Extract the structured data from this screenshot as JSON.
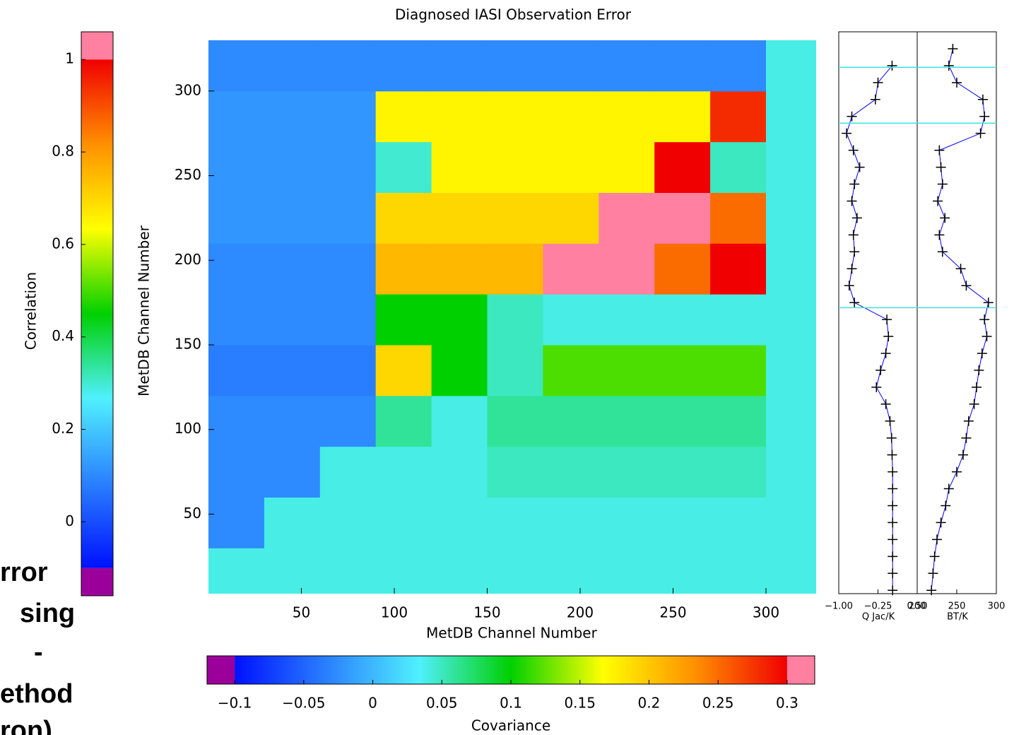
{
  "cropped_text": [
    "rror",
    "sing",
    "-",
    "ethod",
    "ron)"
  ],
  "chart_data": [
    {
      "type": "heatmap",
      "title": "Diagnosed IASI Observation Error",
      "xlabel": "MetDB Channel Number",
      "ylabel": "MetDB Channel Number",
      "xlim": [
        0,
        327
      ],
      "ylim": [
        3,
        335
      ],
      "xticks": [
        50,
        100,
        150,
        200,
        250,
        300
      ],
      "yticks": [
        50,
        100,
        150,
        200,
        250,
        300
      ],
      "x_edges": [
        0,
        30,
        60,
        90,
        120,
        150,
        180,
        210,
        240,
        270,
        300,
        330
      ],
      "y_edges": [
        0,
        30,
        60,
        90,
        120,
        150,
        180,
        210,
        240,
        270,
        300,
        330
      ],
      "z": [
        [
          0.04,
          0.04,
          0.04,
          0.04,
          0.04,
          0.04,
          0.04,
          0.04,
          0.04,
          0.04,
          0.04
        ],
        [
          0.1,
          0.04,
          0.04,
          0.04,
          0.04,
          0.04,
          0.04,
          0.04,
          0.04,
          0.04,
          0.04
        ],
        [
          0.1,
          0.1,
          0.04,
          0.04,
          0.04,
          0.05,
          0.05,
          0.05,
          0.05,
          0.05,
          0.04
        ],
        [
          0.1,
          0.1,
          0.1,
          0.06,
          0.04,
          0.06,
          0.06,
          0.06,
          0.06,
          0.06,
          0.04
        ],
        [
          0.08,
          0.08,
          0.08,
          0.7,
          0.1,
          0.05,
          0.12,
          0.12,
          0.12,
          0.12,
          0.04
        ],
        [
          0.1,
          0.1,
          0.1,
          0.45,
          0.45,
          0.05,
          0.04,
          0.04,
          0.04,
          0.04,
          0.04
        ],
        [
          0.1,
          0.1,
          0.1,
          0.75,
          0.75,
          0.75,
          0.35,
          0.35,
          0.25,
          0.3,
          0.04
        ],
        [
          0.12,
          0.12,
          0.12,
          0.7,
          0.7,
          0.7,
          0.7,
          0.35,
          0.32,
          0.25,
          0.04
        ],
        [
          0.12,
          0.12,
          0.12,
          0.3,
          0.65,
          0.65,
          0.65,
          0.65,
          0.3,
          0.05,
          0.04
        ],
        [
          0.12,
          0.12,
          0.12,
          0.65,
          0.65,
          0.65,
          0.65,
          0.65,
          0.65,
          0.28,
          0.04
        ],
        [
          0.1,
          0.1,
          0.1,
          0.1,
          0.1,
          0.1,
          0.1,
          0.1,
          0.1,
          0.1,
          0.04
        ]
      ],
      "colorbars": [
        {
          "label": "Correlation",
          "lim": [
            -0.16,
            1.06
          ],
          "range": [
            -0.1,
            1
          ],
          "ticks": [
            0,
            0.2,
            0.4,
            0.6,
            0.8,
            1
          ],
          "colors": [
            "#0010ff",
            "#2a80ff",
            "#50f0ff",
            "#00d000",
            "#ffff00",
            "#ff9000",
            "#f00000"
          ],
          "under_color": "#9b009b",
          "over_color": "#ff80a0"
        },
        {
          "label": "Covariance",
          "lim": [
            -0.12,
            0.32
          ],
          "range": [
            -0.1,
            0.3
          ],
          "ticks": [
            {
              "value": -0.1,
              "label": "−0.1"
            },
            {
              "value": -0.05,
              "label": "−0.05"
            },
            0,
            0.05,
            0.1,
            0.15,
            0.2,
            0.25,
            0.3
          ],
          "colors": [
            "#0010ff",
            "#2a80ff",
            "#50f0ff",
            "#00d000",
            "#ffff00",
            "#ff9000",
            "#f00000"
          ],
          "under_color": "#9b009b",
          "over_color": "#ff80a0"
        }
      ]
    },
    {
      "type": "line",
      "ylim": [
        3,
        335
      ],
      "hlines": [
        314,
        281,
        172
      ],
      "hline_color": "#40e0e0",
      "y": [
        5,
        15,
        25,
        35,
        45,
        55,
        65,
        75,
        85,
        95,
        105,
        115,
        125,
        135,
        145,
        155,
        165,
        175,
        185,
        195,
        205,
        215,
        225,
        235,
        245,
        255,
        265,
        275,
        285,
        295,
        305,
        315,
        325
      ],
      "panels": [
        {
          "xlabel": "Q Jac/K",
          "xlim": [
            -1,
            0.5
          ],
          "xticks": [
            {
              "value": -1,
              "label": "−1.00"
            },
            {
              "value": -0.25,
              "label": "−0.25"
            },
            {
              "value": 0.5,
              "label": "0.50"
            }
          ],
          "series": [
            {
              "color": "#0000ff",
              "values": [
                0.03,
                0.03,
                0.03,
                0.03,
                0.03,
                0.03,
                0.03,
                0.03,
                0.02,
                0.01,
                -0.02,
                -0.1,
                -0.28,
                -0.2,
                -0.1,
                -0.05,
                -0.08,
                -0.7,
                -0.8,
                -0.75,
                -0.7,
                -0.72,
                -0.65,
                -0.75,
                -0.7,
                -0.6,
                -0.72,
                -0.85,
                -0.75,
                -0.3,
                -0.25,
                0.02,
                null
              ]
            }
          ]
        },
        {
          "xlabel": "BT/K",
          "xlim": [
            200,
            300
          ],
          "xticks": [
            200,
            250,
            300
          ],
          "series": [
            {
              "color": "#0000ff",
              "values": [
                218,
                220,
                222,
                225,
                230,
                236,
                240,
                250,
                258,
                262,
                265,
                272,
                275,
                278,
                282,
                288,
                285,
                290,
                262,
                255,
                232,
                228,
                235,
                226,
                232,
                230,
                228,
                280,
                285,
                283,
                250,
                240,
                245
              ]
            }
          ]
        }
      ]
    }
  ]
}
